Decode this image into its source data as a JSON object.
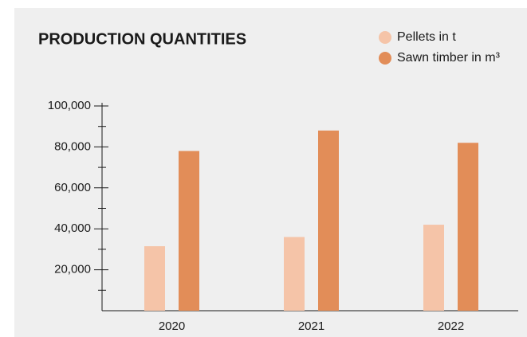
{
  "chart_data": {
    "type": "bar",
    "title": "PRODUCTION QUANTITIES",
    "categories": [
      "2020",
      "2021",
      "2022"
    ],
    "series": [
      {
        "name": "Pellets in t",
        "color": "#f5c4a8",
        "values": [
          31500,
          36000,
          42000
        ]
      },
      {
        "name": "Sawn timber in m³",
        "color": "#e28d58",
        "values": [
          78000,
          88000,
          82000
        ]
      }
    ],
    "ylim": [
      0,
      100000
    ],
    "yticks": [
      {
        "value": 20000,
        "label": "20,000"
      },
      {
        "value": 40000,
        "label": "40,000"
      },
      {
        "value": 60000,
        "label": "60,000"
      },
      {
        "value": 80000,
        "label": "80,000"
      },
      {
        "value": 100000,
        "label": "100,000"
      }
    ],
    "minor_yticks": [
      10000,
      30000,
      50000,
      70000,
      90000
    ],
    "legend": "top-right"
  }
}
